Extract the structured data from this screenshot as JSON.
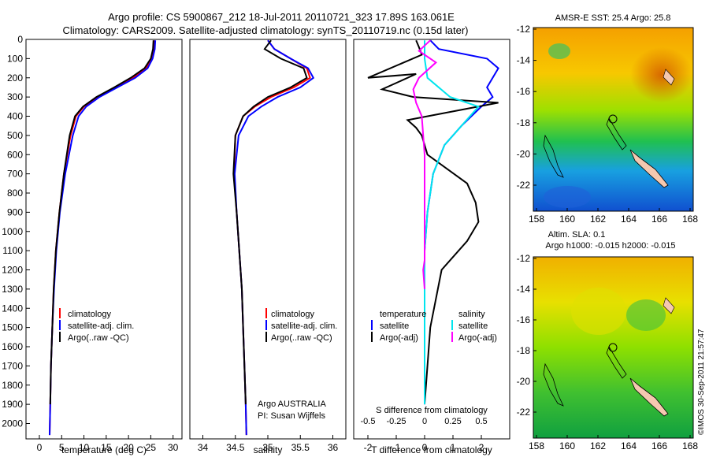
{
  "header": {
    "line1": "Argo profile: CS 5900867_212 18-Jul-2011 20110721_323 17.89S 163.061E",
    "line2": "Climatology: CARS2009. Satellite-adjusted climatology: synTS_20110719.nc (0.15d later)"
  },
  "colors": {
    "climatology": "#ff0000",
    "satellite": "#0000ff",
    "argo": "#000000",
    "sal_satellite": "#00e5ee",
    "sal_argo": "#ff00ff"
  },
  "chart_data": [
    {
      "type": "line",
      "id": "temperature",
      "xlabel": "temperature (deg C)",
      "ylabel": "",
      "xlim": [
        -3,
        32
      ],
      "ylim": [
        2080,
        0
      ],
      "xticks": [
        "0",
        "5",
        "10",
        "15",
        "20",
        "25",
        "30"
      ],
      "yticks": [
        "0",
        "100",
        "200",
        "300",
        "400",
        "500",
        "600",
        "700",
        "800",
        "900",
        "1000",
        "1100",
        "1200",
        "1300",
        "1400",
        "1500",
        "1600",
        "1700",
        "1800",
        "1900",
        "2000"
      ],
      "legend": [
        "climatology",
        "satellite-adj. clim.",
        "Argo(..raw -QC)"
      ],
      "series": [
        {
          "name": "climatology",
          "color": "#ff0000",
          "x": [
            25.8,
            25.7,
            25.2,
            24,
            21,
            17,
            13,
            10,
            8.2,
            7,
            5.5,
            4.5,
            3.7,
            3.2,
            2.9,
            2.6,
            2.45,
            2.3
          ],
          "y": [
            5,
            50,
            100,
            150,
            200,
            250,
            300,
            350,
            400,
            500,
            700,
            900,
            1100,
            1300,
            1500,
            1700,
            1900,
            2060
          ]
        },
        {
          "name": "satellite-adj. clim.",
          "color": "#0000ff",
          "x": [
            26,
            25.9,
            25.4,
            24.3,
            21.5,
            17.5,
            13.5,
            10.5,
            8.8,
            7.5,
            5.8,
            4.6,
            3.8,
            3.3,
            2.9,
            2.6,
            2.45,
            2.3
          ],
          "y": [
            5,
            50,
            100,
            150,
            200,
            250,
            300,
            350,
            400,
            500,
            700,
            900,
            1100,
            1300,
            1500,
            1700,
            1900,
            2060
          ]
        },
        {
          "name": "Argo(..raw -QC)",
          "color": "#000000",
          "x": [
            25.6,
            25.5,
            25.0,
            23.6,
            20.5,
            16.8,
            12.8,
            9.8,
            8.0,
            6.8,
            5.5,
            4.5,
            3.7,
            3.2,
            2.9,
            2.6,
            2.45
          ],
          "y": [
            5,
            50,
            100,
            150,
            200,
            250,
            300,
            350,
            400,
            500,
            700,
            900,
            1100,
            1300,
            1500,
            1700,
            1900
          ]
        }
      ]
    },
    {
      "type": "line",
      "id": "salinity",
      "xlabel": "salinity",
      "xlim": [
        33.8,
        36.2
      ],
      "ylim": [
        2080,
        0
      ],
      "xticks": [
        "34",
        "34.5",
        "35",
        "35.5",
        "36"
      ],
      "legend": [
        "climatology",
        "satellite-adj. clim.",
        "Argo(..raw -QC)"
      ],
      "annotation": [
        "Argo AUSTRALIA",
        "PI: Susan Wijffels"
      ],
      "series": [
        {
          "name": "climatology",
          "color": "#ff0000",
          "x": [
            35.0,
            35.1,
            35.35,
            35.6,
            35.65,
            35.4,
            35.05,
            34.8,
            34.62,
            34.5,
            34.48,
            34.52,
            34.56,
            34.6,
            34.62,
            34.64,
            34.66,
            34.67
          ],
          "y": [
            5,
            50,
            100,
            150,
            200,
            250,
            300,
            350,
            400,
            500,
            700,
            900,
            1100,
            1300,
            1500,
            1700,
            1900,
            2060
          ]
        },
        {
          "name": "satellite-adj. clim.",
          "color": "#0000ff",
          "x": [
            35.0,
            35.1,
            35.35,
            35.62,
            35.7,
            35.5,
            35.15,
            34.9,
            34.7,
            34.55,
            34.49,
            34.52,
            34.56,
            34.6,
            34.62,
            34.64,
            34.66,
            34.67
          ],
          "y": [
            5,
            50,
            100,
            150,
            200,
            250,
            300,
            350,
            400,
            500,
            700,
            900,
            1100,
            1300,
            1500,
            1700,
            1900,
            2060
          ]
        },
        {
          "name": "Argo(..raw -QC)",
          "color": "#000000",
          "x": [
            35.05,
            34.95,
            35.2,
            35.55,
            35.6,
            35.35,
            35.0,
            34.78,
            34.62,
            34.5,
            34.47,
            34.52,
            34.56,
            34.6,
            34.62,
            34.64,
            34.66
          ],
          "y": [
            5,
            50,
            100,
            150,
            200,
            250,
            300,
            350,
            400,
            500,
            700,
            900,
            1100,
            1300,
            1500,
            1700,
            1900
          ]
        }
      ]
    },
    {
      "type": "line",
      "id": "difference",
      "xlabel": "T difference from climatology",
      "xlabel_top": "S difference from climatology",
      "xlim": [
        -2.5,
        3
      ],
      "ylim": [
        2080,
        0
      ],
      "xticks": [
        "-2",
        "-1",
        "0",
        "1",
        "2"
      ],
      "xticks_top": [
        "-0.5",
        "-0.25",
        "0",
        "0.25",
        "0.5"
      ],
      "legend_left_title": "temperature",
      "legend_right_title": "salinity",
      "legend": [
        "satellite",
        "Argo(-adj)",
        "satellite",
        "Argo(-adj)"
      ],
      "series": [
        {
          "name": "T satellite",
          "color": "#0000ff",
          "x": [
            0.2,
            0.5,
            2.2,
            2.6,
            2.4,
            2.2,
            2.4,
            2.0,
            1.3,
            0.7,
            0.3,
            0.1,
            0.0,
            0.0,
            0.0,
            0.0,
            0.0
          ],
          "y": [
            5,
            50,
            100,
            150,
            200,
            250,
            300,
            350,
            450,
            550,
            700,
            900,
            1100,
            1300,
            1500,
            1700,
            1900
          ]
        },
        {
          "name": "T Argo(-adj)",
          "color": "#000000",
          "x": [
            -0.3,
            -0.2,
            -0.1,
            -2.0,
            -0.3,
            -1.5,
            -0.4,
            2.6,
            -0.6,
            -0.3,
            -0.1,
            0.1,
            1.5,
            1.8,
            1.9,
            1.5,
            0.6,
            0.2,
            0.0
          ],
          "y": [
            5,
            40,
            80,
            200,
            180,
            260,
            300,
            330,
            420,
            460,
            500,
            600,
            750,
            850,
            950,
            1050,
            1200,
            1500,
            1900
          ]
        },
        {
          "name": "S satellite",
          "color": "#00e5ee",
          "x": [
            0.0,
            0.0,
            0.1,
            0.9,
            1.9,
            1.3,
            0.7,
            0.3,
            0.1,
            0.0,
            0.0,
            0.0,
            0.0
          ],
          "y": [
            5,
            100,
            200,
            300,
            350,
            450,
            550,
            700,
            900,
            1100,
            1300,
            1600,
            1900
          ]
        },
        {
          "name": "S Argo(-adj)",
          "color": "#ff00ff",
          "x": [
            0.2,
            -0.2,
            0.4,
            -0.2,
            -0.4,
            -0.3,
            -0.1,
            0.0,
            0.0,
            0.0,
            -0.05,
            0.0
          ],
          "y": [
            5,
            60,
            120,
            200,
            260,
            330,
            400,
            600,
            900,
            1150,
            1200,
            1300
          ]
        }
      ]
    },
    {
      "type": "heatmap",
      "id": "sst-map",
      "title": "AMSR-E SST: 25.4 Argo: 25.8",
      "xticks": [
        "158",
        "160",
        "162",
        "164",
        "166",
        "168"
      ],
      "yticks": [
        "-12",
        "-14",
        "-16",
        "-18",
        "-20",
        "-22"
      ]
    },
    {
      "type": "heatmap",
      "id": "sla-map",
      "title_line1": "Altim. SLA: 0.1",
      "title_line2": "Argo h1000: -0.015 h2000: -0.015",
      "xticks": [
        "158",
        "160",
        "162",
        "164",
        "166",
        "168"
      ],
      "yticks": [
        "-12",
        "-14",
        "-16",
        "-18",
        "-20",
        "-22"
      ]
    }
  ],
  "watermark": "©IMOS 30-Sep-2011 21:57:47"
}
